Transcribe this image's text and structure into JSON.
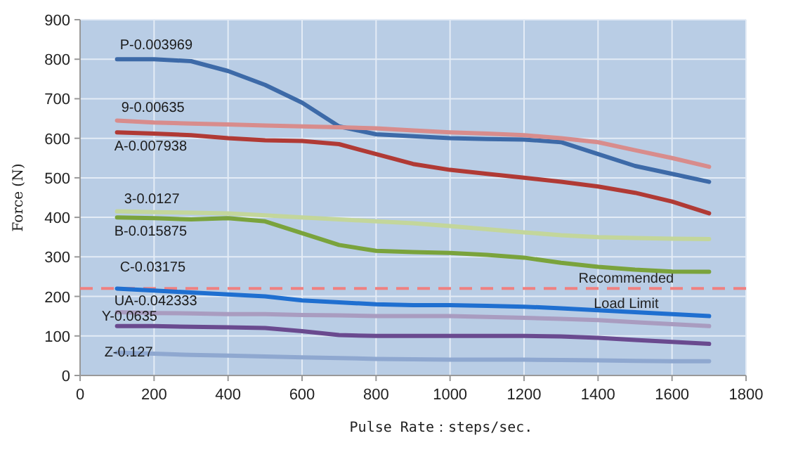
{
  "chart_data": {
    "type": "line",
    "xlabel": "Pulse Rate：steps/sec.",
    "ylabel": "Force (N)",
    "x": [
      100,
      200,
      300,
      400,
      500,
      600,
      700,
      800,
      900,
      1000,
      1100,
      1200,
      1300,
      1400,
      1500,
      1600,
      1700
    ],
    "xlim": [
      0,
      1800
    ],
    "xticks": [
      0,
      200,
      400,
      600,
      800,
      1000,
      1200,
      1400,
      1600,
      1800
    ],
    "ylim": [
      0,
      900
    ],
    "yticks": [
      0,
      100,
      200,
      300,
      400,
      500,
      600,
      700,
      800,
      900
    ],
    "grid": true,
    "marker": "none",
    "line_style": "solid",
    "series": [
      {
        "name": "P-0.003969",
        "color": "#3d6aa8",
        "values": [
          800,
          800,
          795,
          770,
          735,
          690,
          630,
          610,
          605,
          600,
          598,
          597,
          590,
          560,
          530,
          510,
          490
        ]
      },
      {
        "name": "9-0.00635",
        "color": "#d88c8c",
        "values": [
          645,
          640,
          637,
          635,
          632,
          630,
          628,
          625,
          620,
          615,
          612,
          608,
          600,
          590,
          570,
          550,
          528
        ]
      },
      {
        "name": "A-0.007938",
        "color": "#b03a35",
        "values": [
          615,
          612,
          608,
          600,
          595,
          593,
          585,
          560,
          535,
          520,
          510,
          500,
          490,
          478,
          462,
          440,
          410
        ]
      },
      {
        "name": "3-0.0127",
        "color": "#c3d69b",
        "values": [
          415,
          413,
          412,
          410,
          405,
          400,
          395,
          390,
          385,
          378,
          370,
          362,
          355,
          350,
          348,
          346,
          345
        ]
      },
      {
        "name": "B-0.015875",
        "color": "#7aa33c",
        "values": [
          400,
          398,
          395,
          398,
          390,
          360,
          330,
          315,
          312,
          310,
          305,
          298,
          285,
          275,
          268,
          263,
          262
        ]
      },
      {
        "name": "C-0.03175",
        "color": "#1f6fd0",
        "values": [
          220,
          215,
          210,
          205,
          200,
          190,
          185,
          180,
          178,
          178,
          176,
          174,
          170,
          165,
          160,
          155,
          150
        ]
      },
      {
        "name": "UA-0.042333",
        "color": "#a99cc0",
        "values": [
          160,
          158,
          157,
          155,
          155,
          153,
          152,
          150,
          150,
          150,
          148,
          146,
          143,
          140,
          135,
          130,
          125
        ]
      },
      {
        "name": "Y-0.0635",
        "color": "#6a4a8f",
        "values": [
          125,
          125,
          123,
          122,
          120,
          112,
          102,
          100,
          100,
          100,
          100,
          100,
          99,
          95,
          90,
          85,
          80
        ]
      },
      {
        "name": "Z-0.127",
        "color": "#8fa8d0",
        "values": [
          58,
          55,
          52,
          50,
          48,
          46,
          44,
          42,
          41,
          40,
          40,
          40,
          39,
          38,
          37,
          36,
          36
        ]
      }
    ],
    "ref_lines": [
      {
        "axis": "y",
        "value": 220,
        "label": "Recommended\nLoad Limit",
        "color": "#f08080",
        "line_style": "dashed"
      }
    ]
  }
}
